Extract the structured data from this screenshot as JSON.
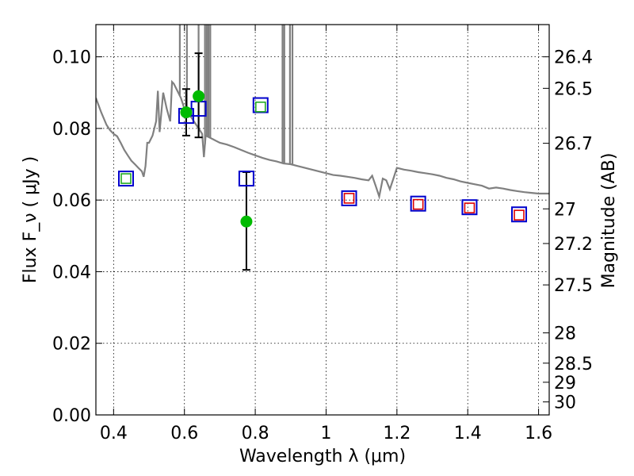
{
  "chart_data": {
    "type": "scatter",
    "xlabel": "Wavelength  λ (μm)",
    "ylabel": "Flux  F_ν  ( μJy )",
    "y2label": "Magnitude (AB)",
    "xlim": [
      0.35,
      1.63
    ],
    "ylim": [
      0.0,
      0.109
    ],
    "xticks": [
      "0.4",
      "0.6",
      "0.8",
      "1",
      "1.2",
      "1.4",
      "1.6"
    ],
    "yticks": [
      "0.00",
      "0.02",
      "0.04",
      "0.06",
      "0.08",
      "0.10"
    ],
    "y2ticks": [
      "26.4",
      "26.5",
      "26.7",
      "27",
      "27.2",
      "27.5",
      "28",
      "28.5",
      "29",
      "30"
    ],
    "grid": true,
    "colors": {
      "model_line": "#808080",
      "model_square": "#0000cc",
      "observed_inner_green": "#22aa22",
      "observed_inner_red": "#dd0000",
      "detections": "#00bb00",
      "errorbar": "#000000"
    },
    "model_spectrum": [
      [
        0.35,
        0.0885
      ],
      [
        0.365,
        0.0845
      ],
      [
        0.38,
        0.081
      ],
      [
        0.39,
        0.0795
      ],
      [
        0.4,
        0.0785
      ],
      [
        0.41,
        0.0778
      ],
      [
        0.42,
        0.076
      ],
      [
        0.43,
        0.074
      ],
      [
        0.44,
        0.0725
      ],
      [
        0.45,
        0.071
      ],
      [
        0.46,
        0.07
      ],
      [
        0.47,
        0.069
      ],
      [
        0.48,
        0.068
      ],
      [
        0.485,
        0.0665
      ],
      [
        0.49,
        0.0695
      ],
      [
        0.495,
        0.076
      ],
      [
        0.5,
        0.076
      ],
      [
        0.51,
        0.078
      ],
      [
        0.52,
        0.082
      ],
      [
        0.525,
        0.0905
      ],
      [
        0.53,
        0.079
      ],
      [
        0.54,
        0.09
      ],
      [
        0.55,
        0.0855
      ],
      [
        0.56,
        0.082
      ],
      [
        0.565,
        0.093
      ],
      [
        0.57,
        0.0925
      ],
      [
        0.58,
        0.0905
      ],
      [
        0.59,
        0.0885
      ],
      [
        0.6,
        0.0855
      ],
      [
        0.61,
        0.084
      ],
      [
        0.62,
        0.083
      ],
      [
        0.63,
        0.0815
      ],
      [
        0.64,
        0.08
      ],
      [
        0.65,
        0.0785
      ],
      [
        0.655,
        0.072
      ],
      [
        0.66,
        0.078
      ],
      [
        0.67,
        0.0775
      ],
      [
        0.68,
        0.077
      ],
      [
        0.69,
        0.0765
      ],
      [
        0.7,
        0.076
      ],
      [
        0.72,
        0.0755
      ],
      [
        0.74,
        0.0748
      ],
      [
        0.76,
        0.074
      ],
      [
        0.78,
        0.0732
      ],
      [
        0.8,
        0.0725
      ],
      [
        0.82,
        0.0718
      ],
      [
        0.84,
        0.0712
      ],
      [
        0.86,
        0.0708
      ],
      [
        0.88,
        0.0702
      ],
      [
        0.9,
        0.07
      ],
      [
        0.92,
        0.0695
      ],
      [
        0.94,
        0.069
      ],
      [
        0.96,
        0.0685
      ],
      [
        0.98,
        0.068
      ],
      [
        1.0,
        0.0675
      ],
      [
        1.02,
        0.067
      ],
      [
        1.04,
        0.0668
      ],
      [
        1.06,
        0.0665
      ],
      [
        1.08,
        0.0662
      ],
      [
        1.1,
        0.0658
      ],
      [
        1.12,
        0.0655
      ],
      [
        1.13,
        0.0668
      ],
      [
        1.14,
        0.064
      ],
      [
        1.15,
        0.061
      ],
      [
        1.16,
        0.066
      ],
      [
        1.17,
        0.0655
      ],
      [
        1.18,
        0.063
      ],
      [
        1.19,
        0.066
      ],
      [
        1.2,
        0.069
      ],
      [
        1.22,
        0.0685
      ],
      [
        1.24,
        0.0682
      ],
      [
        1.26,
        0.0678
      ],
      [
        1.28,
        0.0675
      ],
      [
        1.3,
        0.0672
      ],
      [
        1.32,
        0.0668
      ],
      [
        1.34,
        0.0662
      ],
      [
        1.36,
        0.0658
      ],
      [
        1.38,
        0.0652
      ],
      [
        1.4,
        0.0648
      ],
      [
        1.42,
        0.0644
      ],
      [
        1.44,
        0.064
      ],
      [
        1.46,
        0.0632
      ],
      [
        1.48,
        0.0635
      ],
      [
        1.5,
        0.0632
      ],
      [
        1.52,
        0.0628
      ],
      [
        1.54,
        0.0625
      ],
      [
        1.56,
        0.0622
      ],
      [
        1.58,
        0.062
      ],
      [
        1.6,
        0.0618
      ],
      [
        1.63,
        0.0618
      ]
    ],
    "model_spikes": [
      [
        0.587,
        0.15
      ],
      [
        0.64,
        0.14
      ],
      [
        0.607,
        0.14
      ],
      [
        0.658,
        0.2
      ],
      [
        0.663,
        0.2
      ],
      [
        0.668,
        0.2
      ],
      [
        0.673,
        0.2
      ],
      [
        0.877,
        0.15
      ],
      [
        0.882,
        0.15
      ],
      [
        0.898,
        0.15
      ],
      [
        0.905,
        0.15
      ]
    ],
    "model_points": [
      {
        "x": 0.435,
        "y": 0.066
      },
      {
        "x": 0.605,
        "y": 0.0835
      },
      {
        "x": 0.64,
        "y": 0.0855
      },
      {
        "x": 0.775,
        "y": 0.066
      },
      {
        "x": 0.815,
        "y": 0.0865
      },
      {
        "x": 1.065,
        "y": 0.0605
      },
      {
        "x": 1.26,
        "y": 0.059
      },
      {
        "x": 1.405,
        "y": 0.058
      },
      {
        "x": 1.545,
        "y": 0.056
      }
    ],
    "observed_points": [
      {
        "x": 0.435,
        "y": 0.066,
        "color": "green"
      },
      {
        "x": 0.815,
        "y": 0.086,
        "color": "green"
      },
      {
        "x": 1.065,
        "y": 0.0605,
        "color": "red"
      },
      {
        "x": 1.26,
        "y": 0.0588,
        "color": "red"
      },
      {
        "x": 1.405,
        "y": 0.0578,
        "color": "red"
      },
      {
        "x": 1.545,
        "y": 0.0558,
        "color": "red"
      }
    ],
    "detections": [
      {
        "x": 0.605,
        "y": 0.0845,
        "err_low": 0.078,
        "err_high": 0.091
      },
      {
        "x": 0.64,
        "y": 0.089,
        "err_low": 0.0775,
        "err_high": 0.101
      },
      {
        "x": 0.775,
        "y": 0.054,
        "err_low": 0.0405,
        "err_high": 0.0678
      }
    ]
  }
}
